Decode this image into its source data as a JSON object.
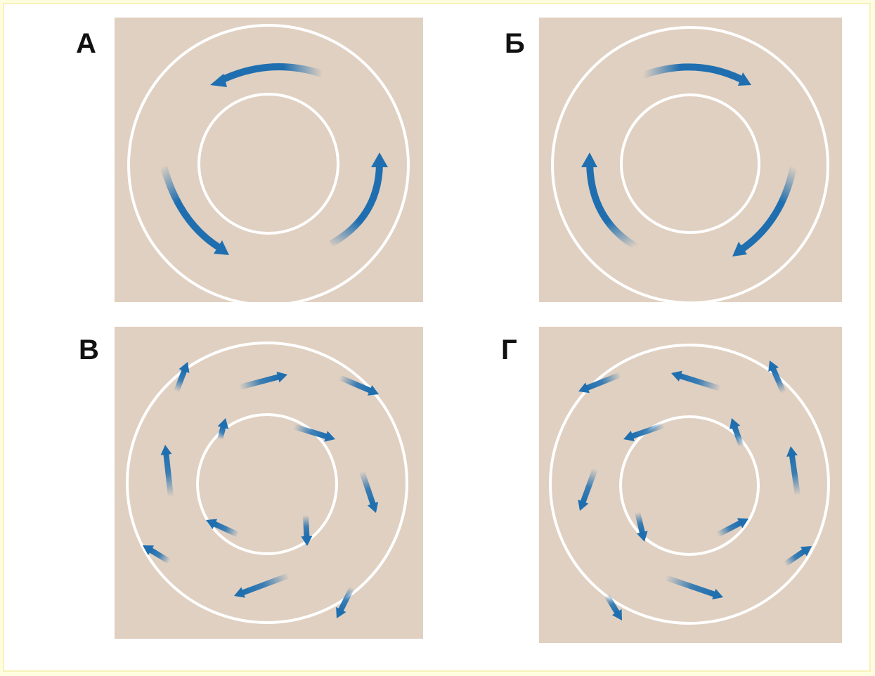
{
  "colors": {
    "panel_bg": "#e0d0c1",
    "ring": "#ffffff",
    "arrow": "#1f6fb0"
  },
  "panels": [
    {
      "label": "А",
      "pattern": "single-flow-counterclockwise"
    },
    {
      "label": "Б",
      "pattern": "single-flow-clockwise"
    },
    {
      "label": "В",
      "pattern": "scattered-short-arrows"
    },
    {
      "label": "Г",
      "pattern": "scattered-short-arrows"
    }
  ]
}
